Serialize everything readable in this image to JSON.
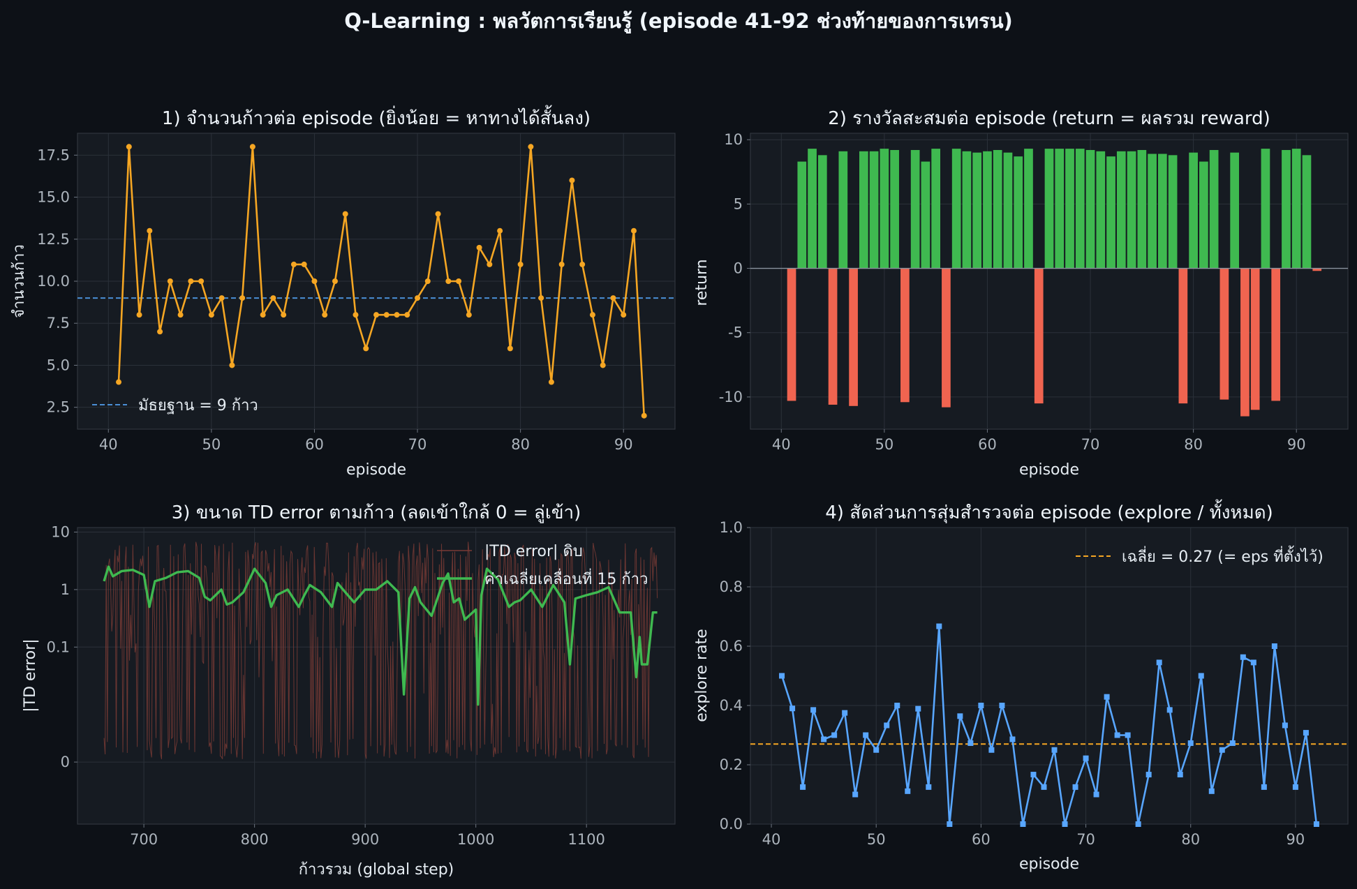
{
  "suptitle": "Q-Learning : พลวัตการเรียนรู้  (episode 41-92 ช่วงท้ายของการเทรน)",
  "colors": {
    "background": "#0d1117",
    "panel": "#161b22",
    "steps": "#f5a623",
    "median": "#4a8fd6",
    "positive": "#3fb950",
    "negative": "#f06450",
    "td_raw": "#7a3b35",
    "td_avg": "#3fb950",
    "explore": "#58a6ff",
    "mean": "#f5a623"
  },
  "chart_data": [
    {
      "type": "line",
      "title": "1)  จำนวนก้าวต่อ episode  (ยิ่งน้อย = หาทางได้สั้นลง)",
      "xlabel": "episode",
      "ylabel": "จำนวนก้าว",
      "xlim": [
        37,
        95
      ],
      "ylim": [
        1.2,
        18.8
      ],
      "xticks": [
        40,
        50,
        60,
        70,
        80,
        90
      ],
      "yticks": [
        2.5,
        5.0,
        7.5,
        10.0,
        12.5,
        15.0,
        17.5
      ],
      "ytick_labels": [
        "2.5",
        "5.0",
        "7.5",
        "10.0",
        "12.5",
        "15.0",
        "17.5"
      ],
      "x": [
        41,
        42,
        43,
        44,
        45,
        46,
        47,
        48,
        49,
        50,
        51,
        52,
        53,
        54,
        55,
        56,
        57,
        58,
        59,
        60,
        61,
        62,
        63,
        64,
        65,
        66,
        67,
        68,
        69,
        70,
        71,
        72,
        73,
        74,
        75,
        76,
        77,
        78,
        79,
        80,
        81,
        82,
        83,
        84,
        85,
        86,
        87,
        88,
        89,
        90,
        91,
        92
      ],
      "y": [
        4,
        18,
        8,
        13,
        7,
        10,
        8,
        10,
        10,
        8,
        9,
        5,
        9,
        18,
        8,
        9,
        8,
        11,
        11,
        10,
        8,
        10,
        14,
        8,
        6,
        8,
        8,
        8,
        8,
        9,
        10,
        14,
        10,
        10,
        8,
        12,
        11,
        13,
        6,
        11,
        18,
        9,
        4,
        11,
        16,
        11,
        8,
        5,
        9,
        8,
        13,
        2
      ],
      "reference_line": {
        "y": 9,
        "label": "มัธยฐาน = 9 ก้าว"
      },
      "legend": "lower-left",
      "grid": true
    },
    {
      "type": "bar",
      "title": "2)  รางวัลสะสมต่อ episode  (return = ผลรวม reward)",
      "xlabel": "episode",
      "ylabel": "return",
      "xlim": [
        37,
        95
      ],
      "ylim": [
        -12.5,
        10.5
      ],
      "xticks": [
        40,
        50,
        60,
        70,
        80,
        90
      ],
      "yticks": [
        -10,
        -5,
        0,
        5,
        10
      ],
      "x": [
        41,
        42,
        43,
        44,
        45,
        46,
        47,
        48,
        49,
        50,
        51,
        52,
        53,
        54,
        55,
        56,
        57,
        58,
        59,
        60,
        61,
        62,
        63,
        64,
        65,
        66,
        67,
        68,
        69,
        70,
        71,
        72,
        73,
        74,
        75,
        76,
        77,
        78,
        79,
        80,
        81,
        82,
        83,
        84,
        85,
        86,
        87,
        88,
        89,
        90,
        91,
        92
      ],
      "values": [
        -10.3,
        8.3,
        9.3,
        8.8,
        -10.6,
        9.1,
        -10.7,
        9.1,
        9.1,
        9.3,
        9.2,
        -10.4,
        9.2,
        8.3,
        9.3,
        -10.8,
        9.3,
        9.1,
        9.0,
        9.1,
        9.2,
        9.0,
        8.7,
        9.3,
        -10.5,
        9.3,
        9.3,
        9.3,
        9.3,
        9.2,
        9.1,
        8.7,
        9.1,
        9.1,
        9.2,
        8.9,
        8.9,
        8.8,
        -10.5,
        9.0,
        8.3,
        9.2,
        -10.2,
        9.0,
        -11.5,
        -11.0,
        9.3,
        -10.3,
        9.2,
        9.3,
        8.8,
        -0.2
      ],
      "grid": true
    },
    {
      "type": "line",
      "title": "3)  ขนาด TD error ตามก้าว  (ลดเข้าใกล้ 0 = ลู่เข้า)",
      "xlabel": "ก้าวรวม (global step)",
      "ylabel": "|TD error|",
      "scale": "symlog",
      "xlim": [
        640,
        1180
      ],
      "ylim": [
        -0.012,
        12
      ],
      "xticks": [
        700,
        800,
        900,
        1000,
        1100
      ],
      "yticks": [
        0,
        0.1,
        1,
        10
      ],
      "ytick_labels": [
        "0",
        "0.1",
        "1",
        "10"
      ],
      "legend": "top-right",
      "series": [
        {
          "name": "|TD error| ดิบ",
          "x": [
            664,
            1164
          ],
          "note": "dense per-step trace, values vary between about 0 and 7"
        },
        {
          "name": "ค่าเฉลี่ยเคลื่อนที่ 15 ก้าว",
          "x": [
            664,
            668,
            672,
            680,
            690,
            700,
            705,
            710,
            720,
            730,
            740,
            750,
            755,
            760,
            770,
            775,
            780,
            790,
            800,
            810,
            815,
            820,
            830,
            840,
            845,
            850,
            860,
            870,
            875,
            880,
            890,
            900,
            910,
            920,
            930,
            935,
            940,
            945,
            950,
            960,
            970,
            975,
            980,
            985,
            990,
            1000,
            1002,
            1005,
            1010,
            1020,
            1030,
            1035,
            1040,
            1050,
            1060,
            1070,
            1080,
            1085,
            1090,
            1100,
            1110,
            1120,
            1130,
            1140,
            1145,
            1148,
            1150,
            1155,
            1160,
            1164
          ],
          "y": [
            1.4,
            2.5,
            1.7,
            2.1,
            2.2,
            1.8,
            0.5,
            1.4,
            1.6,
            2.0,
            2.1,
            1.6,
            0.75,
            0.65,
            1.0,
            0.55,
            0.6,
            0.9,
            2.3,
            1.3,
            0.5,
            0.8,
            1.0,
            0.5,
            0.8,
            1.2,
            0.9,
            0.5,
            1.3,
            1.0,
            0.6,
            1.0,
            1.0,
            1.4,
            0.9,
            0.015,
            0.7,
            1.1,
            0.6,
            0.35,
            1.3,
            1.9,
            0.6,
            0.7,
            0.3,
            0.45,
            0.01,
            0.8,
            2.3,
            1.5,
            0.5,
            0.6,
            0.65,
            1.0,
            0.5,
            1.2,
            0.6,
            0.05,
            0.7,
            0.8,
            0.9,
            1.1,
            0.4,
            0.4,
            0.03,
            0.15,
            0.05,
            0.05,
            0.4,
            0.4
          ]
        }
      ],
      "grid": true
    },
    {
      "type": "line",
      "title": "4)  สัดส่วนการสุ่มสำรวจต่อ episode  (explore / ทั้งหมด)",
      "xlabel": "episode",
      "ylabel": "explore rate",
      "xlim": [
        38,
        95
      ],
      "ylim": [
        0,
        1
      ],
      "xticks": [
        40,
        50,
        60,
        70,
        80,
        90
      ],
      "yticks": [
        0.0,
        0.2,
        0.4,
        0.6,
        0.8,
        1.0
      ],
      "ytick_labels": [
        "0.0",
        "0.2",
        "0.4",
        "0.6",
        "0.8",
        "1.0"
      ],
      "x": [
        41,
        42,
        43,
        44,
        45,
        46,
        47,
        48,
        49,
        50,
        51,
        52,
        53,
        54,
        55,
        56,
        57,
        58,
        59,
        60,
        61,
        62,
        63,
        64,
        65,
        66,
        67,
        68,
        69,
        70,
        71,
        72,
        73,
        74,
        75,
        76,
        77,
        78,
        79,
        80,
        81,
        82,
        83,
        84,
        85,
        86,
        87,
        88,
        89,
        90,
        91,
        92
      ],
      "y": [
        0.5,
        0.39,
        0.125,
        0.385,
        0.286,
        0.3,
        0.375,
        0.1,
        0.3,
        0.25,
        0.333,
        0.4,
        0.111,
        0.389,
        0.125,
        0.667,
        0.0,
        0.364,
        0.273,
        0.4,
        0.25,
        0.4,
        0.286,
        0.0,
        0.167,
        0.125,
        0.25,
        0.0,
        0.125,
        0.222,
        0.1,
        0.429,
        0.3,
        0.3,
        0.0,
        0.167,
        0.545,
        0.385,
        0.167,
        0.273,
        0.5,
        0.111,
        0.25,
        0.273,
        0.563,
        0.545,
        0.125,
        0.6,
        0.333,
        0.125,
        0.308,
        0.0
      ],
      "reference_line": {
        "y": 0.27,
        "label": "เฉลี่ย = 0.27  (= eps ที่ตั้งไว้)"
      },
      "legend": "top-right",
      "grid": true
    }
  ]
}
